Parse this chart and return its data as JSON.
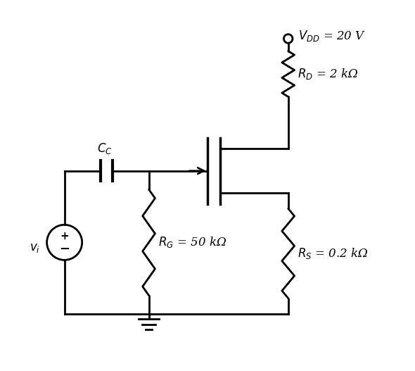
{
  "background_color": "#ffffff",
  "line_color": "#000000",
  "line_width": 2.0,
  "figsize": [
    5.9,
    5.27
  ],
  "dpi": 100,
  "labels": {
    "VDD": "$V_{DD}$ = 20 V",
    "RD": "$R_D$ = 2 kΩ",
    "RG": "$R_G$ = 50 kΩ",
    "RS": "$R_S$ = 0.2 kΩ",
    "CC": "$C_C$",
    "vi": "$v_i$"
  }
}
